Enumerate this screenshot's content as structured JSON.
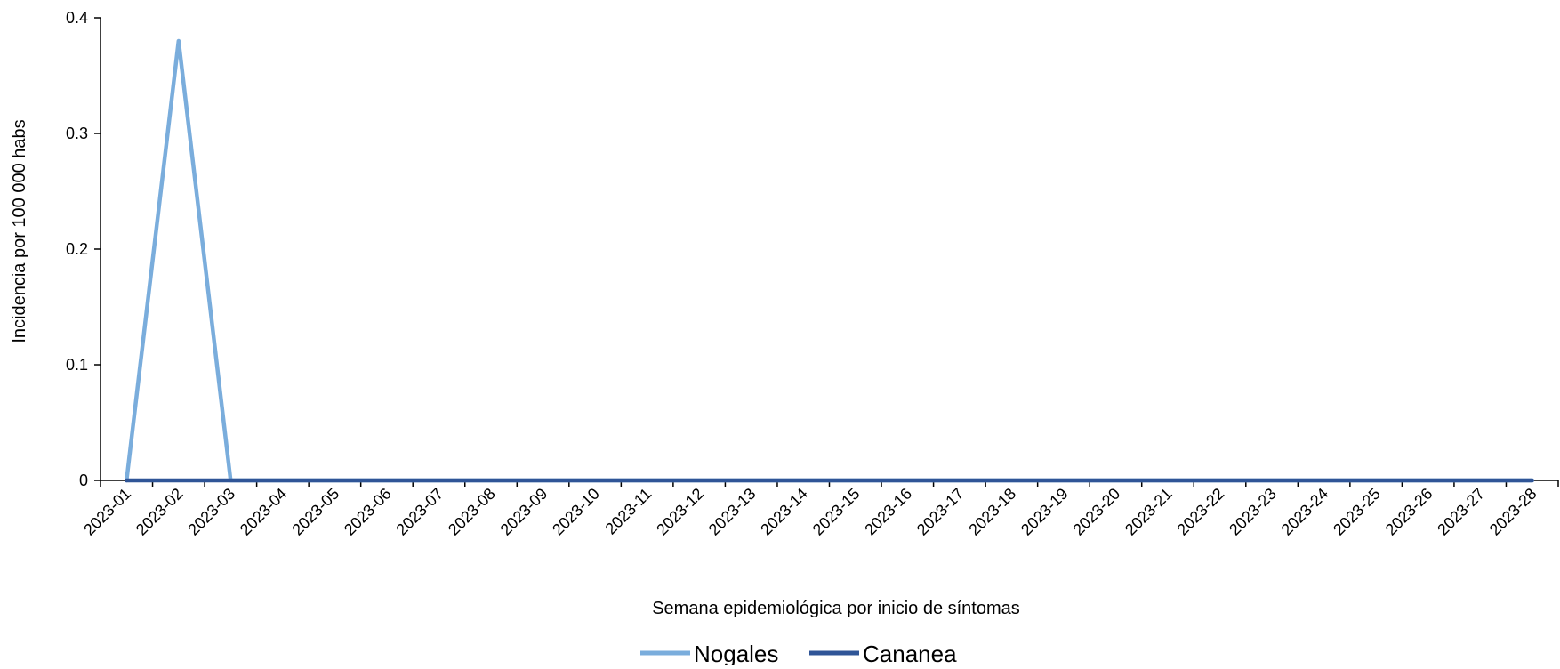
{
  "chart_data": {
    "type": "line",
    "title": "",
    "xlabel": "Semana epidemiológica por inicio de síntomas",
    "ylabel": "Incidencia por 100 000 habs",
    "ylim": [
      0,
      0.4
    ],
    "yticks": [
      "0",
      "0.1",
      "0.2",
      "0.3",
      "0.4"
    ],
    "ytick_values": [
      0,
      0.1,
      0.2,
      0.3,
      0.4
    ],
    "categories": [
      "2023-01",
      "2023-02",
      "2023-03",
      "2023-04",
      "2023-05",
      "2023-06",
      "2023-07",
      "2023-08",
      "2023-09",
      "2023-10",
      "2023-11",
      "2023-12",
      "2023-13",
      "2023-14",
      "2023-15",
      "2023-16",
      "2023-17",
      "2023-18",
      "2023-19",
      "2023-20",
      "2023-21",
      "2023-22",
      "2023-23",
      "2023-24",
      "2023-25",
      "2023-26",
      "2023-27",
      "2023-28"
    ],
    "series": [
      {
        "name": "Nogales",
        "color": "#7aaddc",
        "values": [
          0,
          0.38,
          0,
          0,
          0,
          0,
          0,
          0,
          0,
          0,
          0,
          0,
          0,
          0,
          0,
          0,
          0,
          0,
          0,
          0,
          0,
          0,
          0,
          0,
          0,
          0,
          0,
          0
        ]
      },
      {
        "name": "Cananea",
        "color": "#2f5597",
        "values": [
          0,
          0,
          0,
          0,
          0,
          0,
          0,
          0,
          0,
          0,
          0,
          0,
          0,
          0,
          0,
          0,
          0,
          0,
          0,
          0,
          0,
          0,
          0,
          0,
          0,
          0,
          0,
          0
        ]
      }
    ],
    "grid": false,
    "legend_position": "bottom"
  }
}
